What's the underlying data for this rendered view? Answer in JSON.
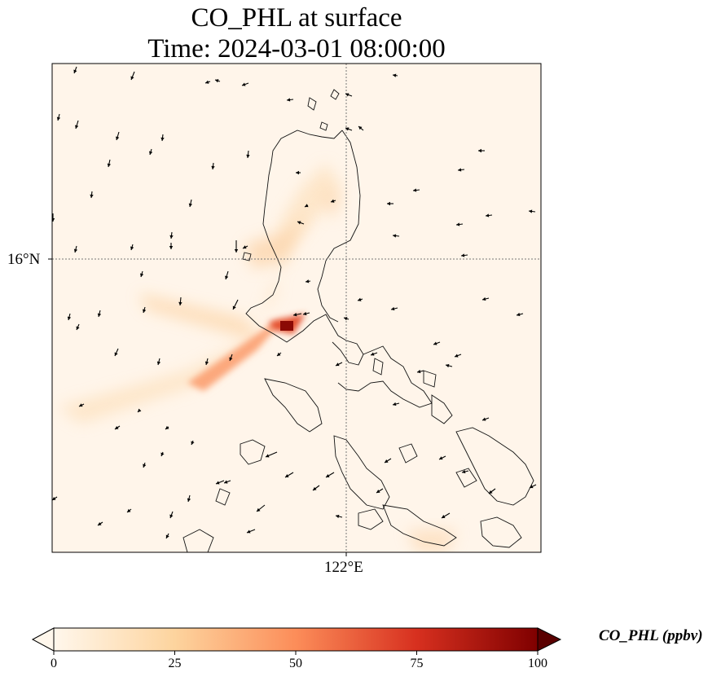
{
  "title_line1": "CO_PHL at surface",
  "title_line2": "Time: 2024-03-01 08:00:00",
  "map": {
    "lat_tick": "16°N",
    "lon_tick": "122°E",
    "background_color": "#fff5ea",
    "gridline_color": "#777777",
    "coast_color": "#111111"
  },
  "colorbar": {
    "label": "CO_PHL (ppbv)",
    "ticks": [
      "0",
      "25",
      "50",
      "75",
      "100"
    ],
    "min": 0,
    "max": 100,
    "colormap": "OrRd",
    "stops": [
      "#fff7ec",
      "#fdd49e",
      "#fc8d59",
      "#d7301f",
      "#7f0000"
    ]
  }
}
